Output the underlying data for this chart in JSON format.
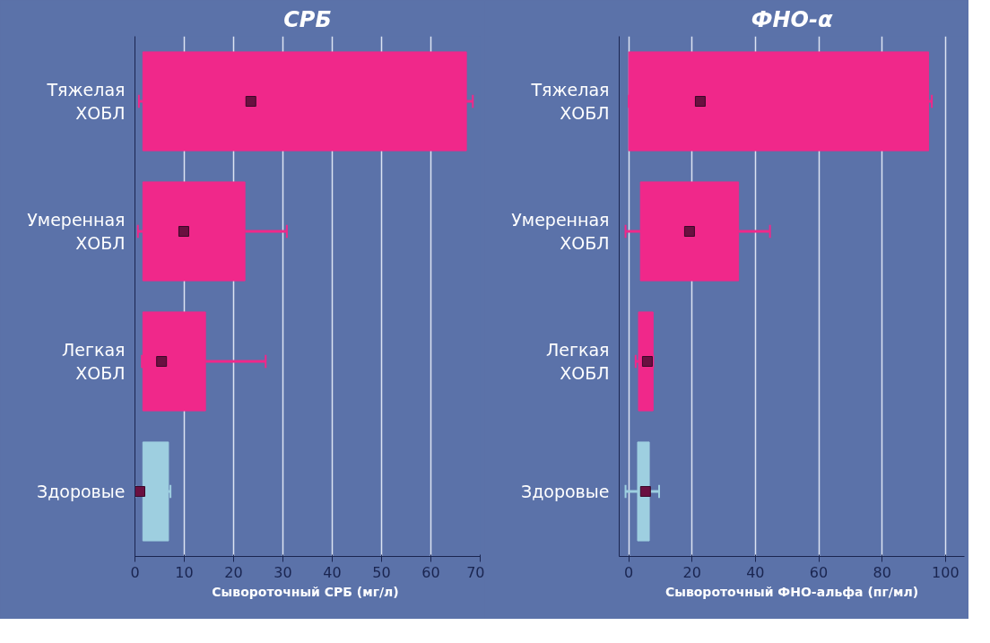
{
  "chart_data": [
    {
      "type": "box",
      "orientation": "horizontal",
      "title": "СРБ",
      "xlabel": "Сывороточный СРБ  (мг/л)",
      "categories": [
        "Тяжелая ХОБЛ",
        "Умеренная ХОБЛ",
        "Легкая ХОБЛ",
        "Здоровые"
      ],
      "colors": [
        "#f0288a",
        "#f0288a",
        "#f0288a",
        "#9ecfe0"
      ],
      "boxes": [
        {
          "low": 0.8,
          "q1": 1.6,
          "median": 23.5,
          "q3": 67.2,
          "high": 68.5
        },
        {
          "low": 0.6,
          "q1": 1.6,
          "median": 9.9,
          "q3": 22.3,
          "high": 30.8
        },
        {
          "low": 1.4,
          "q1": 1.6,
          "median": 5.4,
          "q3": 14.3,
          "high": 26.5
        },
        {
          "low": 0,
          "q1": 1.6,
          "median": 1.0,
          "q3": 6.8,
          "high": 7.2
        }
      ],
      "xlim": [
        0,
        70
      ],
      "xticks": [
        0,
        10,
        20,
        30,
        40,
        50,
        60,
        70
      ],
      "grid": "x"
    },
    {
      "type": "box",
      "orientation": "horizontal",
      "title": "ФНО-α",
      "xlabel": "Сывороточный ФНО-альфа (пг/мл)",
      "categories": [
        "Тяжелая ХОБЛ",
        "Умеренная ХОБЛ",
        "Легкая ХОБЛ",
        "Здоровые"
      ],
      "colors": [
        "#f0288a",
        "#f0288a",
        "#f0288a",
        "#9ecfe0"
      ],
      "boxes": [
        {
          "low": 0,
          "q1": 0,
          "median": 22.6,
          "q3": 94.7,
          "high": 95.7
        },
        {
          "low": -1,
          "q1": 3.7,
          "median": 19.2,
          "q3": 34.7,
          "high": 44.6
        },
        {
          "low": 2.2,
          "q1": 3.1,
          "median": 5.9,
          "q3": 7.7,
          "high": 7.7
        },
        {
          "low": -1,
          "q1": 2.8,
          "median": 5.3,
          "q3": 6.5,
          "high": 9.6
        }
      ],
      "xlim": [
        -3,
        106
      ],
      "xticks": [
        0,
        20,
        40,
        60,
        80,
        100
      ],
      "grid": "x"
    }
  ]
}
